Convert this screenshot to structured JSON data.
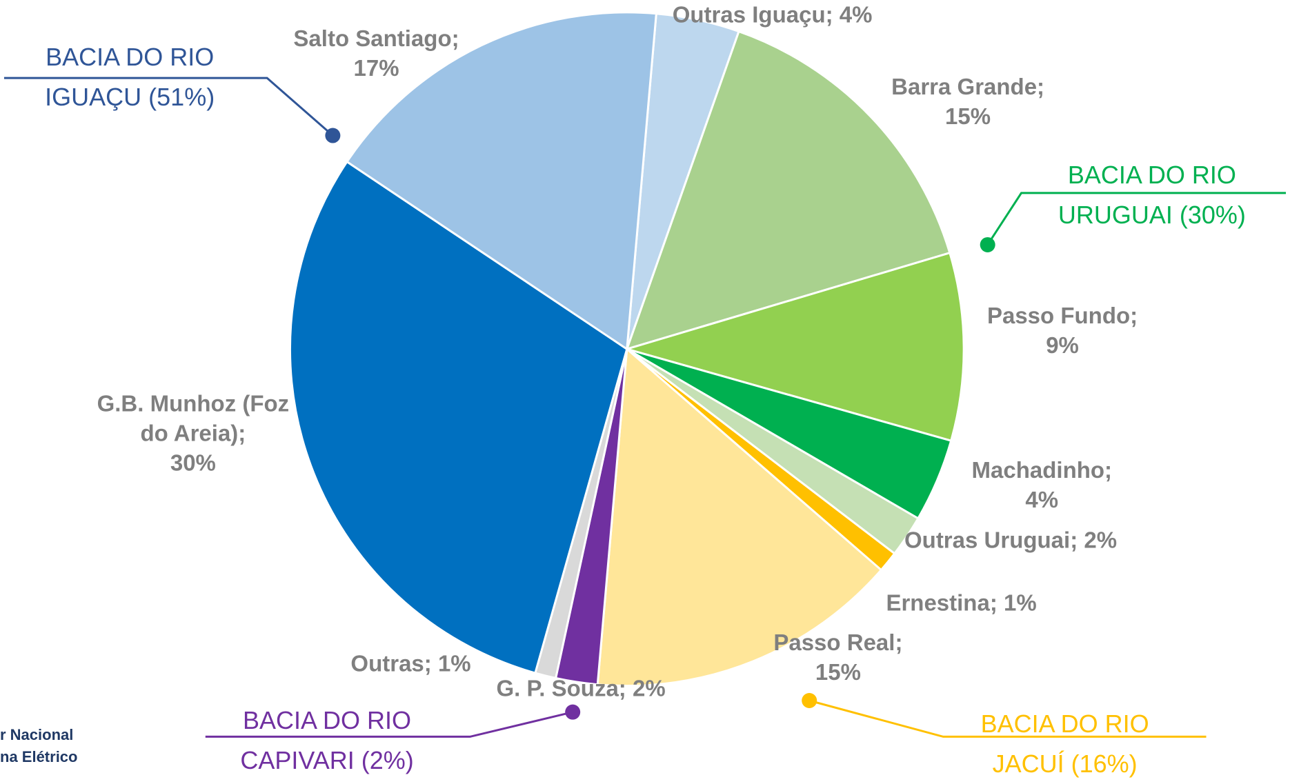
{
  "chart_data": {
    "type": "pie",
    "categories": [
      "Outras Iguaçu;",
      "Barra Grande;",
      "Passo Fundo;",
      "Machadinho;",
      "Outras Uruguai;",
      "Ernestina;",
      "Passo Real;",
      "G. P. Souza;",
      "Outras;",
      "G.B. Munhoz (Foz do Areia);",
      "Salto Santiago;"
    ],
    "values": [
      4,
      15,
      9,
      4,
      2,
      1,
      15,
      2,
      1,
      30,
      17
    ],
    "value_labels": [
      "4%",
      "15%",
      "9%",
      "4%",
      "2%",
      "1%",
      "15%",
      "2%",
      "1%",
      "30%",
      "17%"
    ],
    "colors": [
      "#bdd7ee",
      "#a9d18e",
      "#92d050",
      "#00b050",
      "#c5e0b4",
      "#ffc000",
      "#ffe699",
      "#7030a0",
      "#d9d9d9",
      "#0070c0",
      "#9dc3e6"
    ],
    "annotations": [
      {
        "lines": [
          "BACIA DO RIO",
          "IGUAÇU (51%)"
        ],
        "color": "#2f5597"
      },
      {
        "lines": [
          "BACIA DO RIO",
          "URUGUAI (30%)"
        ],
        "color": "#00b050"
      },
      {
        "lines": [
          "BACIA DO RIO",
          "CAPIVARI (2%)"
        ],
        "color": "#7030a0"
      },
      {
        "lines": [
          "BACIA DO RIO",
          "JACUÍ (16%)"
        ],
        "color": "#ffc000"
      }
    ],
    "logo_lines": [
      "r Nacional",
      "na Elétrico"
    ]
  }
}
